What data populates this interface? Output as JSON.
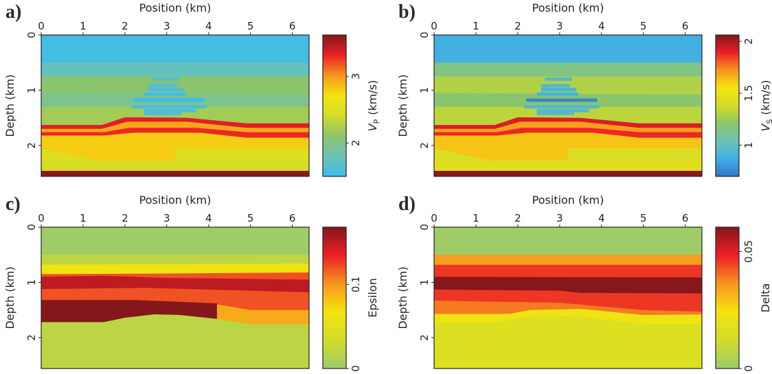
{
  "chart_data": [
    {
      "panel": "a)",
      "type": "heatmap",
      "xlabel": "Position (km)",
      "ylabel": "Depth (km)",
      "colorbar_label": {
        "symbol": "V",
        "subscript": "P",
        "unit": "(km/s)"
      },
      "xlim": [
        0,
        6.4
      ],
      "ylim": [
        0,
        2.56
      ],
      "xticks": [
        "0",
        "1",
        "2",
        "3",
        "4",
        "5",
        "6"
      ],
      "yticks": [
        "0",
        "1",
        "2"
      ],
      "cbar_range": [
        1.5,
        3.62
      ],
      "cbar_ticks": [
        "2",
        "3"
      ],
      "colormap": [
        "#3cbcec",
        "#6cc2b4",
        "#8cc56a",
        "#d2dc2a",
        "#f5e40f",
        "#f7961e",
        "#ec1f26",
        "#84171b"
      ],
      "layers": [
        {
          "value": 1.55,
          "top": [
            [
              0,
              0
            ],
            [
              6.4,
              0
            ]
          ]
        },
        {
          "value": 1.75,
          "top": [
            [
              0,
              0.5
            ],
            [
              6.4,
              0.5
            ]
          ]
        },
        {
          "value": 2.1,
          "top": [
            [
              0,
              0.75
            ],
            [
              6.4,
              0.75
            ]
          ]
        },
        {
          "value": 1.95,
          "top": [
            [
              0,
              1.05
            ],
            [
              6.4,
              1.08
            ]
          ]
        },
        {
          "value": 2.2,
          "top": [
            [
              0,
              1.3
            ],
            [
              6.4,
              1.3
            ]
          ]
        },
        {
          "value": 3.35,
          "top": [
            [
              0,
              1.63
            ],
            [
              1.45,
              1.63
            ],
            [
              2.0,
              1.49
            ],
            [
              3.5,
              1.5
            ],
            [
              4.9,
              1.6
            ],
            [
              6.4,
              1.6
            ]
          ]
        },
        {
          "value": 2.95,
          "top": [
            [
              0,
              1.7
            ],
            [
              1.45,
              1.7
            ],
            [
              2.05,
              1.57
            ],
            [
              3.5,
              1.57
            ],
            [
              4.9,
              1.68
            ],
            [
              6.4,
              1.68
            ]
          ]
        },
        {
          "value": 3.3,
          "top": [
            [
              0,
              1.76
            ],
            [
              1.5,
              1.76
            ],
            [
              2.1,
              1.68
            ],
            [
              3.7,
              1.68
            ],
            [
              4.9,
              1.76
            ],
            [
              6.4,
              1.76
            ]
          ]
        },
        {
          "value": 2.8,
          "top": [
            [
              0,
              1.82
            ],
            [
              1.5,
              1.82
            ],
            [
              2.2,
              1.77
            ],
            [
              3.8,
              1.77
            ],
            [
              4.9,
              1.86
            ],
            [
              6.4,
              1.86
            ]
          ]
        },
        {
          "value": 2.5,
          "top": [
            [
              3.2,
              2.05
            ],
            [
              6.4,
              2.05
            ]
          ]
        },
        {
          "value": 2.45,
          "top": [
            [
              0,
              2.27
            ],
            [
              6.4,
              2.27
            ]
          ]
        },
        {
          "value": 3.6,
          "top": [
            [
              0,
              2.46
            ],
            [
              6.4,
              2.46
            ]
          ]
        }
      ],
      "lenses": [
        {
          "x": [
            2.65,
            3.3
          ],
          "depth": 0.8,
          "value": 1.65
        },
        {
          "x": [
            2.55,
            3.25
          ],
          "depth": 0.92,
          "value": 1.65
        },
        {
          "x": [
            2.55,
            3.4
          ],
          "depth": 0.99,
          "value": 1.6
        },
        {
          "x": [
            2.45,
            3.45
          ],
          "depth": 1.07,
          "value": 1.55
        },
        {
          "x": [
            2.2,
            3.9
          ],
          "depth": 1.18,
          "value": 1.5
        },
        {
          "x": [
            2.15,
            3.95
          ],
          "depth": 1.3,
          "value": 1.6
        },
        {
          "x": [
            2.45,
            3.7
          ],
          "depth": 1.37,
          "value": 1.6
        },
        {
          "x": [
            2.45,
            3.35
          ],
          "depth": 1.42,
          "value": 1.6
        }
      ]
    },
    {
      "panel": "b)",
      "type": "heatmap",
      "xlabel": "Position (km)",
      "ylabel": "Depth (km)",
      "colorbar_label": {
        "symbol": "V",
        "subscript": "S",
        "unit": "(km/s)"
      },
      "xlim": [
        0,
        6.4
      ],
      "ylim": [
        0,
        2.56
      ],
      "xticks": [
        "0",
        "1",
        "2",
        "3",
        "4",
        "5",
        "6"
      ],
      "yticks": [
        "0",
        "1",
        "2"
      ],
      "cbar_range": [
        0.7,
        2.06
      ],
      "cbar_ticks": [
        "1",
        "1.5",
        "2"
      ],
      "colormap": [
        "#3175c6",
        "#3fb0e4",
        "#6cc2b4",
        "#8cc56a",
        "#d2dc2a",
        "#f5e40f",
        "#f7961e",
        "#ec1f26",
        "#84171b"
      ],
      "layers": [
        {
          "value": 0.88,
          "top": [
            [
              0,
              0
            ],
            [
              6.4,
              0
            ]
          ]
        },
        {
          "value": 1.15,
          "top": [
            [
              0,
              0.5
            ],
            [
              6.4,
              0.5
            ]
          ]
        },
        {
          "value": 1.3,
          "top": [
            [
              0,
              0.75
            ],
            [
              6.4,
              0.75
            ]
          ]
        },
        {
          "value": 1.2,
          "top": [
            [
              0,
              1.05
            ],
            [
              6.4,
              1.08
            ]
          ]
        },
        {
          "value": 1.33,
          "top": [
            [
              0,
              1.3
            ],
            [
              6.4,
              1.3
            ]
          ]
        },
        {
          "value": 1.92,
          "top": [
            [
              0,
              1.63
            ],
            [
              1.45,
              1.63
            ],
            [
              2.0,
              1.49
            ],
            [
              3.5,
              1.5
            ],
            [
              4.9,
              1.6
            ],
            [
              6.4,
              1.6
            ]
          ]
        },
        {
          "value": 1.7,
          "top": [
            [
              0,
              1.7
            ],
            [
              1.45,
              1.7
            ],
            [
              2.05,
              1.57
            ],
            [
              3.5,
              1.57
            ],
            [
              4.9,
              1.68
            ],
            [
              6.4,
              1.68
            ]
          ]
        },
        {
          "value": 1.88,
          "top": [
            [
              0,
              1.76
            ],
            [
              1.5,
              1.76
            ],
            [
              2.1,
              1.68
            ],
            [
              3.7,
              1.68
            ],
            [
              4.9,
              1.76
            ],
            [
              6.4,
              1.76
            ]
          ]
        },
        {
          "value": 1.62,
          "top": [
            [
              0,
              1.82
            ],
            [
              1.5,
              1.82
            ],
            [
              2.2,
              1.77
            ],
            [
              3.8,
              1.77
            ],
            [
              4.9,
              1.86
            ],
            [
              6.4,
              1.86
            ]
          ]
        },
        {
          "value": 1.42,
          "top": [
            [
              3.2,
              2.05
            ],
            [
              6.4,
              2.05
            ]
          ]
        },
        {
          "value": 1.45,
          "top": [
            [
              0,
              2.27
            ],
            [
              6.4,
              2.27
            ]
          ]
        },
        {
          "value": 2.05,
          "top": [
            [
              0,
              2.46
            ],
            [
              6.4,
              2.46
            ]
          ]
        }
      ],
      "lenses": [
        {
          "x": [
            2.65,
            3.3
          ],
          "depth": 0.8,
          "value": 0.95
        },
        {
          "x": [
            2.55,
            3.25
          ],
          "depth": 0.92,
          "value": 0.95
        },
        {
          "x": [
            2.55,
            3.4
          ],
          "depth": 0.99,
          "value": 0.9
        },
        {
          "x": [
            2.45,
            3.45
          ],
          "depth": 1.07,
          "value": 0.9
        },
        {
          "x": [
            2.2,
            3.9
          ],
          "depth": 1.18,
          "value": 0.75
        },
        {
          "x": [
            2.15,
            3.95
          ],
          "depth": 1.3,
          "value": 0.95
        },
        {
          "x": [
            2.45,
            3.7
          ],
          "depth": 1.37,
          "value": 0.95
        },
        {
          "x": [
            2.45,
            3.35
          ],
          "depth": 1.42,
          "value": 0.95
        }
      ]
    },
    {
      "panel": "c)",
      "type": "heatmap",
      "xlabel": "Position (km)",
      "ylabel": "Depth (km)",
      "colorbar_label": {
        "symbol": "Epsilon",
        "subscript": "",
        "unit": ""
      },
      "xlim": [
        0,
        6.4
      ],
      "ylim": [
        0,
        2.56
      ],
      "xticks": [
        "0",
        "1",
        "2",
        "3",
        "4",
        "5",
        "6"
      ],
      "yticks": [
        "0",
        "1",
        "2"
      ],
      "cbar_range": [
        0,
        0.168
      ],
      "cbar_ticks": [
        "0",
        "0.1"
      ],
      "colormap": [
        "#9ccb6c",
        "#d2dc2a",
        "#f5e40f",
        "#f7961e",
        "#ec1f26",
        "#84171b"
      ],
      "layers": [
        {
          "value": 0.002,
          "top": [
            [
              0,
              0
            ],
            [
              6.4,
              0
            ]
          ]
        },
        {
          "value": 0.022,
          "top": [
            [
              0,
              0.5
            ],
            [
              6.4,
              0.5
            ]
          ]
        },
        {
          "value": 0.062,
          "top": [
            [
              0,
              0.68
            ],
            [
              3,
              0.67
            ],
            [
              6.4,
              0.66
            ]
          ]
        },
        {
          "value": 0.12,
          "top": [
            [
              0,
              0.85
            ],
            [
              3,
              0.84
            ],
            [
              6.4,
              0.82
            ]
          ]
        },
        {
          "value": 0.15,
          "top": [
            [
              0,
              0.9
            ],
            [
              1.5,
              0.88
            ],
            [
              3,
              0.92
            ],
            [
              6.4,
              0.95
            ]
          ]
        },
        {
          "value": 0.12,
          "top": [
            [
              0,
              1.12
            ],
            [
              2.5,
              1.1
            ],
            [
              3.5,
              1.12
            ],
            [
              6.4,
              1.18
            ]
          ]
        },
        {
          "value": 0.168,
          "top": [
            [
              0,
              1.32
            ],
            [
              2.3,
              1.32
            ],
            [
              4.2,
              1.38
            ]
          ],
          "x": [
            0,
            4.2
          ]
        },
        {
          "value": 0.092,
          "top": [
            [
              4.2,
              1.4
            ],
            [
              5,
              1.5
            ],
            [
              6.4,
              1.5
            ]
          ],
          "x": [
            4.2,
            6.4
          ]
        },
        {
          "value": 0.02,
          "top": [
            [
              0,
              1.72
            ],
            [
              1.5,
              1.72
            ],
            [
              2.0,
              1.64
            ],
            [
              2.7,
              1.58
            ],
            [
              3.3,
              1.59
            ],
            [
              4.2,
              1.66
            ],
            [
              5,
              1.76
            ],
            [
              6.4,
              1.76
            ]
          ]
        }
      ],
      "lenses": []
    },
    {
      "panel": "d)",
      "type": "heatmap",
      "xlabel": "Position (km)",
      "ylabel": "Depth (km)",
      "colorbar_label": {
        "symbol": "Delta",
        "subscript": "",
        "unit": ""
      },
      "xlim": [
        0,
        6.4
      ],
      "ylim": [
        0,
        2.56
      ],
      "xticks": [
        "0",
        "1",
        "2",
        "3",
        "4",
        "5",
        "6"
      ],
      "yticks": [
        "0",
        "1",
        "2"
      ],
      "cbar_range": [
        0,
        0.0604
      ],
      "cbar_ticks": [
        "0",
        "0.05"
      ],
      "colormap": [
        "#9ccb6c",
        "#d2dc2a",
        "#f5e40f",
        "#f7961e",
        "#ec1f26",
        "#84171b"
      ],
      "layers": [
        {
          "value": 0.001,
          "top": [
            [
              0,
              0
            ],
            [
              6.4,
              0
            ]
          ]
        },
        {
          "value": 0.035,
          "top": [
            [
              0,
              0.5
            ],
            [
              6.4,
              0.5
            ]
          ]
        },
        {
          "value": 0.046,
          "top": [
            [
              0,
              0.68
            ],
            [
              6.4,
              0.68
            ]
          ]
        },
        {
          "value": 0.06,
          "top": [
            [
              0,
              0.9
            ],
            [
              6.4,
              0.91
            ]
          ]
        },
        {
          "value": 0.046,
          "top": [
            [
              0,
              1.13
            ],
            [
              3,
              1.15
            ],
            [
              3.5,
              1.19
            ],
            [
              6.4,
              1.2
            ]
          ]
        },
        {
          "value": 0.039,
          "top": [
            [
              0,
              1.33
            ],
            [
              3,
              1.37
            ],
            [
              5,
              1.5
            ],
            [
              6.4,
              1.53
            ]
          ]
        },
        {
          "value": 0.022,
          "top": [
            [
              0,
              1.57
            ],
            [
              1.8,
              1.57
            ],
            [
              2.3,
              1.5
            ],
            [
              3.5,
              1.48
            ],
            [
              5,
              1.59
            ],
            [
              6.4,
              1.58
            ]
          ]
        },
        {
          "value": 0.016,
          "top": [
            [
              0,
              1.73
            ],
            [
              1.4,
              1.73
            ],
            [
              2.5,
              1.6
            ],
            [
              3.5,
              1.62
            ],
            [
              5,
              1.76
            ],
            [
              6.4,
              1.76
            ]
          ]
        }
      ],
      "lenses": []
    }
  ]
}
